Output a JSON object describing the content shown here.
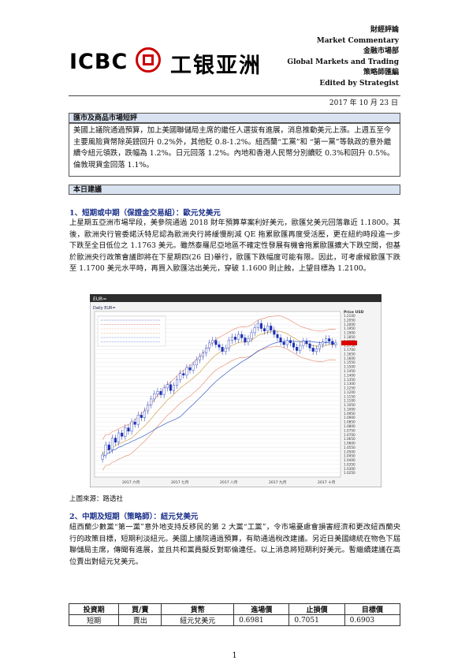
{
  "header": {
    "line1": "財經評論",
    "line2": "Market Commentary",
    "line3": "金融市場部",
    "line4": "Global Markets and Trading",
    "line5": "策略師匯編",
    "line6": "Edited by Strategist",
    "logo_en": "ICBC",
    "logo_cn": "工银亚洲",
    "date": "2017 年 10 月 23 日"
  },
  "section1": {
    "title": "匯市及商品市場短評",
    "body": "美國上議院通過預算，加上美國聯儲局主席的繼任人選拔有進展，消息推動美元上漲。上週五至今主要風險貨幣除英鎊回升 0.2%外，其他貶 0.8-1.2%。紐西蘭“工黨”和 “第一黨”等執政的意外繼續令紐元領跌，跌幅為 1.2%。日元回落 1.2%。內地和香港人民幣分別續貶 0.3%和回升 0.5%。倫敦現貨金回落 1.1%。"
  },
  "section2": {
    "title": "本日建議"
  },
  "item1": {
    "title": "1、短期或中期（保證金交易組）：歐元兌美元",
    "body": "上星期五亞洲市場早段，美參院通過 2018 財年預算草案利好美元，歐匯兌美元回落靠近 1.1800。其後，歐洲央行管委諾沃特尼認為歐洲央行將緩慢削減 QE 拖累歐匯再度受活壓，更在紐約時段進一步下跌至全日低位之 1.1763 美元。雖然泰羅尼亞地區不確定性發展有機會拖累歐匯擴大下跌空間，但基於歐洲央行政策會議即將在下星期四(26 日)舉行，歐匯下跌幅度可能有限。因此，可考慮候歐匯下跌至 1.1700 美元水平時，再買入歐匯沽出美元，穿破 1.1600 則止蝕，上望目標為 1.2100。"
  },
  "chart_caption": "上圖來源：路透社",
  "item2": {
    "title": "2、中期及短期（策略師）：紐元兌美元",
    "body": "紐西蘭少數黨“第一黨”意外地支持反移民的第 2 大黨“工黨”，令市場憂慮會損害經濟和更改紐西蘭央行的政策目標，短期利淡紐元。美國上議院通過預算，有助通過稅改建議。另近日美國總統在物色下屆聯儲局主席，傳聞有進展，並且共和黨員擬反對耶倫連任。以上消息將短期利好美元。暫繼續建議在高位賣出對紐元兌美元。"
  },
  "table": {
    "headers": [
      "投資期",
      "買/賣",
      "貨幣",
      "進場價",
      "止損價",
      "目標價"
    ],
    "rows": [
      [
        "短期",
        "賣出",
        "紐元兌美元",
        "0.6981",
        "0.7051",
        "0.6903"
      ]
    ]
  },
  "page_number": "1",
  "chart_data": {
    "type": "candlestick",
    "title": "EUR=",
    "panel_label": "Daily EUR=",
    "ylabel": "Price USD",
    "ylim": [
      1.02,
      1.215
    ],
    "y_ticks": [
      "1.2100",
      "1.2050",
      "1.2000",
      "1.1950",
      "1.1900",
      "1.1850",
      "1.1800",
      "1.1750",
      "1.1700",
      "1.1650",
      "1.1600",
      "1.1550",
      "1.1500",
      "1.1450",
      "1.1400",
      "1.1350",
      "1.1300",
      "1.1250",
      "1.1200",
      "1.1150",
      "1.1100",
      "1.1050",
      "1.1000",
      "1.0950",
      "1.0900",
      "1.0850",
      "1.0800",
      "1.0750",
      "1.0700",
      "1.0650",
      "1.0600",
      "1.0550",
      "1.0500",
      "1.0450",
      "1.0400",
      "1.0350",
      "1.0300",
      "1.0250"
    ],
    "x_labels": [
      "2017 六月",
      "2017 七月",
      "2017 八月",
      "2017 九月",
      "2017 十月"
    ],
    "close_series": [
      1.046,
      1.058,
      1.052,
      1.066,
      1.061,
      1.072,
      1.068,
      1.078,
      1.074,
      1.085,
      1.082,
      1.093,
      1.09,
      1.098,
      1.105,
      1.112,
      1.118,
      1.121,
      1.117,
      1.125,
      1.129,
      1.122,
      1.128,
      1.135,
      1.142,
      1.14,
      1.149,
      1.146,
      1.152,
      1.158,
      1.162,
      1.166,
      1.172,
      1.178,
      1.181,
      1.176,
      1.173,
      1.168,
      1.172,
      1.181,
      1.185,
      1.182,
      1.188,
      1.184,
      1.179,
      1.183,
      1.19,
      1.196,
      1.201,
      1.195,
      1.192,
      1.198,
      1.193,
      1.188,
      1.184,
      1.179,
      1.176,
      1.181,
      1.178,
      1.173,
      1.169,
      1.175,
      1.18,
      1.177,
      1.172,
      1.168,
      1.171,
      1.176,
      1.179,
      1.183,
      1.18,
      1.176,
      1.178
    ]
  }
}
